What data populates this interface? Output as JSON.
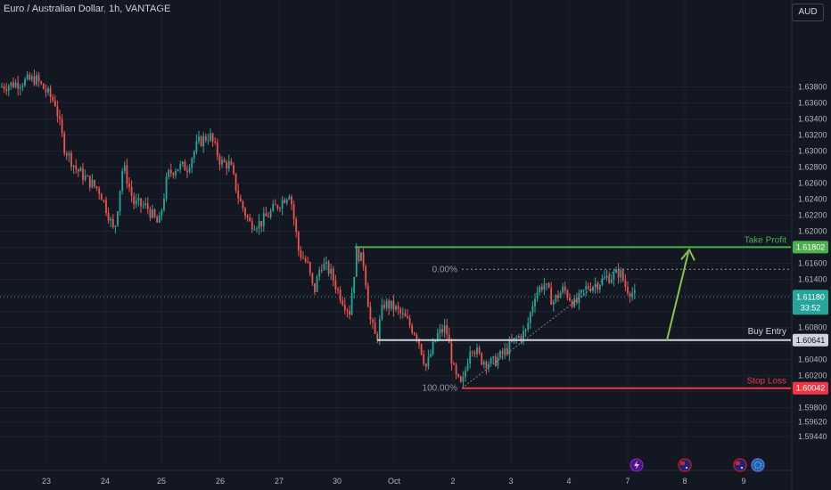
{
  "header": {
    "symbol_title": "Euro / Australian Dollar, 1h, VANTAGE",
    "currency_button": "AUD"
  },
  "colors": {
    "background": "#131722",
    "grid": "#1e222d",
    "bull": "#26a69a",
    "bear": "#ef5350",
    "take_profit": "#4caf50",
    "stop_loss": "#f23645",
    "entry": "#d1d4dc",
    "current_price": "#26a69a"
  },
  "annotations": {
    "take_profit_label": "Take Profit",
    "buy_entry_label": "Buy Entry",
    "stop_loss_label": "Stop Loss",
    "fib_top_label": "0.00%",
    "fib_bottom_label": "100.00%"
  },
  "price_tags": {
    "take_profit": "1.61802",
    "current": "1.61180",
    "countdown": "33:52",
    "entry": "1.60641",
    "stop_loss": "1.60042"
  },
  "bottom_icons": [
    "lightning-icon",
    "australia-flag-icon",
    "australia-flag-icon",
    "eu-flag-icon"
  ],
  "chart_data": {
    "type": "candlestick",
    "title": "",
    "xlabel": "",
    "ylabel": "",
    "ylim": [
      1.5935,
      1.639
    ],
    "x_ticks": [
      "23",
      "24",
      "25",
      "26",
      "27",
      "30",
      "Oct",
      "2",
      "3",
      "4",
      "7",
      "8",
      "9"
    ],
    "y_ticks": [
      "1.63800",
      "1.63600",
      "1.63400",
      "1.63200",
      "1.63000",
      "1.62800",
      "1.62600",
      "1.62400",
      "1.62200",
      "1.62000",
      "1.61800",
      "1.61600",
      "1.61400",
      "1.61200",
      "1.61000",
      "1.60800",
      "1.60600",
      "1.60400",
      "1.60200",
      "1.60000",
      "1.59800",
      "1.59620",
      "1.59440"
    ],
    "grid": true,
    "close_path": [
      [
        0,
        1.638
      ],
      [
        20,
        1.6385
      ],
      [
        40,
        1.639
      ],
      [
        62,
        1.636
      ],
      [
        72,
        1.6305
      ],
      [
        85,
        1.6278
      ],
      [
        100,
        1.6262
      ],
      [
        112,
        1.625
      ],
      [
        122,
        1.622
      ],
      [
        128,
        1.6197
      ],
      [
        138,
        1.6283
      ],
      [
        150,
        1.6235
      ],
      [
        165,
        1.623
      ],
      [
        178,
        1.6207
      ],
      [
        188,
        1.627
      ],
      [
        198,
        1.628
      ],
      [
        210,
        1.628
      ],
      [
        222,
        1.631
      ],
      [
        235,
        1.632
      ],
      [
        248,
        1.6285
      ],
      [
        258,
        1.6283
      ],
      [
        268,
        1.624
      ],
      [
        280,
        1.621
      ],
      [
        292,
        1.621
      ],
      [
        305,
        1.6225
      ],
      [
        318,
        1.624
      ],
      [
        325,
        1.625
      ],
      [
        335,
        1.6175
      ],
      [
        345,
        1.6158
      ],
      [
        352,
        1.6123
      ],
      [
        360,
        1.616
      ],
      [
        370,
        1.615
      ],
      [
        380,
        1.6123
      ],
      [
        392,
        1.61
      ],
      [
        400,
        1.6175
      ],
      [
        408,
        1.616
      ],
      [
        415,
        1.609
      ],
      [
        422,
        1.6064
      ],
      [
        430,
        1.611
      ],
      [
        442,
        1.6105
      ],
      [
        455,
        1.609
      ],
      [
        468,
        1.607
      ],
      [
        478,
        1.603
      ],
      [
        490,
        1.607
      ],
      [
        500,
        1.608
      ],
      [
        510,
        1.602
      ],
      [
        518,
        1.6005
      ],
      [
        528,
        1.606
      ],
      [
        540,
        1.604
      ],
      [
        552,
        1.6035
      ],
      [
        565,
        1.6048
      ],
      [
        578,
        1.6065
      ],
      [
        590,
        1.6075
      ],
      [
        600,
        1.6122
      ],
      [
        610,
        1.6135
      ],
      [
        620,
        1.6112
      ],
      [
        632,
        1.6128
      ],
      [
        645,
        1.6108
      ],
      [
        658,
        1.613
      ],
      [
        670,
        1.6135
      ],
      [
        680,
        1.6142
      ],
      [
        690,
        1.6145
      ],
      [
        695,
        1.615
      ],
      [
        702,
        1.613
      ],
      [
        708,
        1.6125
      ],
      [
        713,
        1.6118
      ]
    ],
    "levels": {
      "take_profit": 1.61802,
      "fib_0": 1.61525,
      "current": 1.6118,
      "entry": 1.60641,
      "stop_loss": 1.60042
    }
  }
}
